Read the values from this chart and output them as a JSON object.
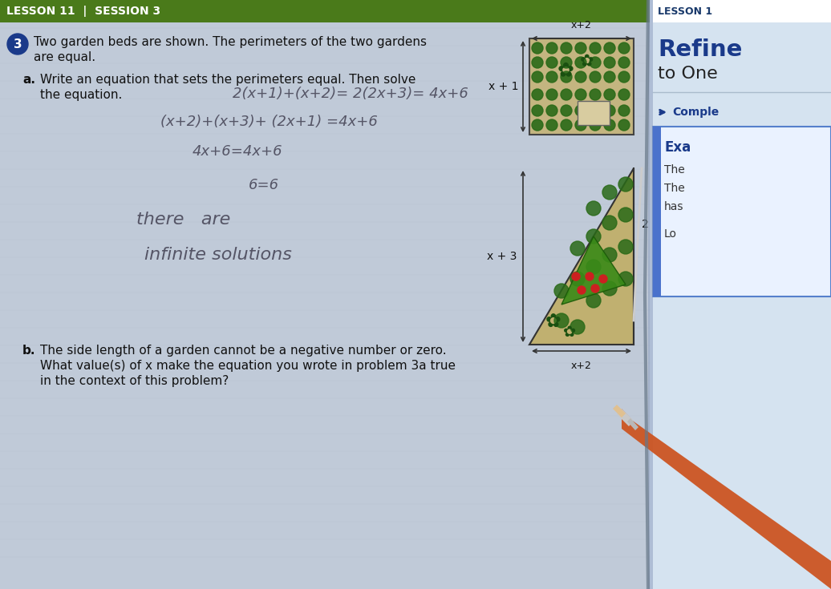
{
  "bg_left": "#c5cdd8",
  "bg_right": "#d8e2ee",
  "header_green": "#4a7a1a",
  "header_text": "LESSON 11  |  SESSION 3",
  "header_text_color": "#ffffff",
  "right_bg": "#dce8f4",
  "right_header_text": "LESSON 1",
  "right_header_color": "#1a3a6b",
  "refine_text": "Refine",
  "to_one_text": "to One",
  "complete_text": "Comple",
  "example_title": "Exa",
  "the1_text": "The",
  "the2_text": "The",
  "has_text": "has",
  "lo_text": "Lo",
  "problem_number": "3",
  "intro_line1": "Two garden beds are shown. The perimeters of the two gardens",
  "intro_line2": "are equal.",
  "part_a_label": "a.",
  "part_a_line1": "Write an equation that sets the perimeters equal. Then solve",
  "part_a_line2": "the equation.",
  "hw_line1": "2(x+1)+(x+2)= 2(2x+3)= 4x+6",
  "hw_line2": "(x+2)+(x+3)+ (2x+1) =4x+6",
  "hw_line3": "4x+6=4x+6",
  "hw_line4": "6=6",
  "hw_line5": "there   are",
  "hw_line6": "infinite solutions",
  "part_b_label": "b.",
  "part_b_line1": "The side length of a garden cannot be a negative number or zero.",
  "part_b_line2": "What value(s) of x make the equation you wrote in problem 3a true",
  "part_b_line3": "in the context of this problem?",
  "g1_top": "x+2",
  "g1_left": "x + 1",
  "g2_left": "x + 3",
  "g2_right": "2",
  "g2_bottom": "x+2",
  "pencil_orange": "#cc5522",
  "pencil_gray": "#aaaaaa",
  "line_color": "#555555",
  "text_color": "#222222",
  "hw_color": "#555566"
}
